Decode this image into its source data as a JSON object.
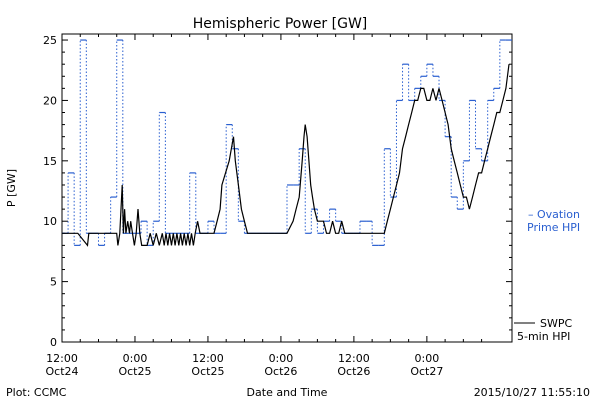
{
  "chart_data": {
    "type": "line",
    "title": "Hemispheric Power [GW]",
    "ylabel": "P [GW]",
    "xlabel": "Date and Time",
    "ylim": [
      0,
      25.5
    ],
    "yticks": [
      0,
      5,
      10,
      15,
      20,
      25
    ],
    "x_unit": "hours from 2015-10-24 12:00",
    "xlim": [
      0,
      74
    ],
    "xticks": [
      {
        "x": 0,
        "line1": "12:00",
        "line2": "Oct24"
      },
      {
        "x": 12,
        "line1": "0:00",
        "line2": "Oct25"
      },
      {
        "x": 24,
        "line1": "12:00",
        "line2": "Oct25"
      },
      {
        "x": 36,
        "line1": "0:00",
        "line2": "Oct26"
      },
      {
        "x": 48,
        "line1": "12:00",
        "line2": "Oct26"
      },
      {
        "x": 60,
        "line1": "0:00",
        "line2": "Oct27"
      }
    ],
    "grid": false,
    "series": [
      {
        "name": "Ovation Prime HPI",
        "legend_lines": [
          "– Ovation",
          "Prime HPI"
        ],
        "color": "#2a5fd0",
        "style": "dotted-step",
        "x": [
          0,
          1,
          2,
          3,
          4,
          5,
          6,
          7,
          8,
          9,
          10,
          11,
          12,
          13,
          14,
          15,
          16,
          17,
          18,
          19,
          20,
          21,
          22,
          23,
          24,
          25,
          26,
          27,
          28,
          29,
          30,
          31,
          32,
          33,
          34,
          35,
          36,
          37,
          38,
          39,
          40,
          41,
          42,
          43,
          44,
          45,
          46,
          47,
          48,
          49,
          50,
          51,
          52,
          53,
          54,
          55,
          56,
          57,
          58,
          59,
          60,
          61,
          62,
          63,
          64,
          65,
          66,
          67,
          68,
          69,
          70,
          71,
          72,
          73
        ],
        "values": [
          9,
          14,
          8,
          25,
          9,
          9,
          8,
          9,
          12,
          25,
          9,
          9,
          9,
          10,
          8,
          10,
          19,
          9,
          9,
          9,
          9,
          14,
          9,
          9,
          10,
          9,
          9,
          18,
          16,
          10,
          9,
          9,
          9,
          9,
          9,
          9,
          9,
          13,
          13,
          16,
          9,
          11,
          9,
          10,
          11,
          10,
          9,
          9,
          9,
          10,
          10,
          8,
          8,
          16,
          12,
          20,
          23,
          20,
          21,
          22,
          23,
          22,
          20,
          17,
          12,
          11,
          15,
          20,
          16,
          15,
          20,
          21,
          25,
          25
        ]
      },
      {
        "name": "SWPC 5-min HPI",
        "legend_lines": [
          "SWPC",
          "5-min HPI"
        ],
        "color": "#000000",
        "style": "solid",
        "x": [
          0,
          2.6,
          4.2,
          4.4,
          4.7,
          5,
          9,
          9.2,
          9.5,
          9.9,
          10.1,
          10.3,
          10.5,
          10.8,
          11.1,
          11.3,
          11.6,
          11.9,
          12.2,
          12.5,
          12.8,
          13.1,
          13.5,
          14,
          14.5,
          15,
          15.5,
          16,
          16.5,
          16.8,
          17.1,
          17.4,
          17.7,
          18,
          18.3,
          18.6,
          18.9,
          19.2,
          19.5,
          19.8,
          20.1,
          20.4,
          20.7,
          21,
          21.3,
          21.6,
          21.9,
          22.3,
          22.7,
          23,
          23.5,
          24,
          24.5,
          25,
          25.5,
          26,
          26.3,
          27.5,
          28.2,
          28.5,
          29,
          29.5,
          30,
          30.5,
          31,
          31.5,
          32,
          33,
          34,
          35,
          36,
          37,
          38,
          38.5,
          39,
          39.5,
          39.8,
          40,
          40.3,
          40.6,
          40.9,
          41.2,
          41.5,
          42,
          42.5,
          43,
          43.5,
          44,
          44.5,
          45,
          45.5,
          46,
          46.5,
          47,
          47.5,
          48,
          48.5,
          49,
          49.5,
          50,
          50.5,
          51,
          51.5,
          52,
          52.5,
          53,
          53.5,
          54,
          54.5,
          55,
          55.5,
          56,
          56.5,
          57,
          57.5,
          58,
          58.5,
          59,
          59.5,
          60,
          60.5,
          61,
          61.5,
          62,
          62.5,
          63,
          63.5,
          64,
          64.5,
          65,
          65.5,
          66,
          66.5,
          67,
          67.5,
          68,
          68.5,
          69,
          69.5,
          70,
          70.5,
          71,
          71.5,
          72,
          72.5,
          73,
          73.5
        ],
        "values": [
          9,
          9,
          8,
          9,
          9,
          9,
          9,
          8,
          9,
          13,
          9,
          11,
          9,
          10,
          9,
          10,
          9,
          8,
          9,
          11,
          9,
          8,
          8,
          8,
          9,
          8,
          9,
          8,
          9,
          8,
          9,
          8,
          9,
          8,
          9,
          8,
          9,
          8,
          9,
          8,
          9,
          8,
          9,
          8,
          9,
          8,
          9,
          10,
          9,
          9,
          9,
          9,
          9,
          9,
          10,
          11,
          13,
          15,
          17,
          15,
          13,
          11,
          10,
          9,
          9,
          9,
          9,
          9,
          9,
          9,
          9,
          9,
          10,
          11,
          12,
          15,
          17,
          18,
          17,
          15,
          13,
          12,
          11,
          10,
          10,
          10,
          9,
          9,
          10,
          9,
          9,
          10,
          9,
          9,
          9,
          9,
          9,
          9,
          9,
          9,
          9,
          9,
          9,
          9,
          9,
          9,
          10,
          11,
          12,
          13,
          14,
          16,
          17,
          18,
          19,
          20,
          20,
          21,
          21,
          20,
          20,
          21,
          20,
          21,
          20,
          19,
          18,
          16,
          15,
          14,
          13,
          12,
          12,
          11,
          12,
          13,
          14,
          14,
          15,
          16,
          17,
          18,
          19,
          19,
          20,
          21,
          23
        ]
      }
    ],
    "footer_left": "Plot: CCMC",
    "footer_right": "2015/10/27 11:55:10"
  }
}
